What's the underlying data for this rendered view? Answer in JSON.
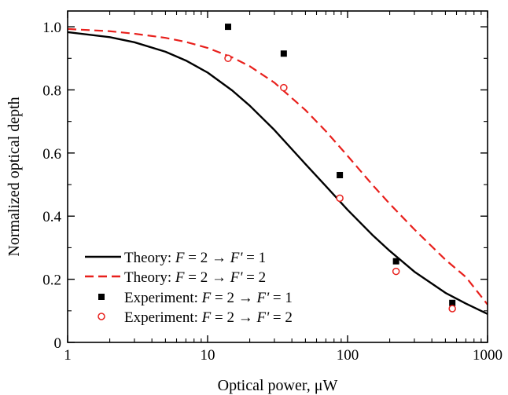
{
  "chart_data": {
    "type": "scatter",
    "xlabel": "Optical power, μW",
    "ylabel": "Normalized optical depth",
    "xscale": "log",
    "xlim": [
      1,
      1000
    ],
    "ylim": [
      0,
      1.05
    ],
    "x_ticks": [
      1,
      10,
      100,
      1000
    ],
    "x_tick_labels": [
      "1",
      "10",
      "100",
      "1000"
    ],
    "y_ticks": [
      0,
      0.2,
      0.4,
      0.6,
      0.8,
      1.0
    ],
    "y_tick_labels": [
      "0",
      "0.2",
      "0.4",
      "0.6",
      "0.8",
      "1.0"
    ],
    "grid": false,
    "legend_position": "bottom-left",
    "series": [
      {
        "name": "Theory: F = 2 → F' = 1",
        "name_parts": [
          "Theory: ",
          "F",
          " = 2 → ",
          "F'",
          " = 1"
        ],
        "kind": "line",
        "color": "#000000",
        "dash": "solid",
        "x": [
          1,
          2,
          3,
          5,
          7,
          10,
          15,
          20,
          30,
          50,
          70,
          100,
          150,
          200,
          300,
          500,
          700,
          1000
        ],
        "y": [
          0.983,
          0.967,
          0.951,
          0.921,
          0.893,
          0.855,
          0.798,
          0.75,
          0.673,
          0.565,
          0.495,
          0.42,
          0.341,
          0.29,
          0.224,
          0.157,
          0.123,
          0.09
        ]
      },
      {
        "name": "Theory: F = 2 → F' = 2",
        "name_parts": [
          "Theory: ",
          "F",
          " = 2 → ",
          "F'",
          " = 2"
        ],
        "kind": "line",
        "color": "#e8201c",
        "dash": "dashed",
        "x": [
          1,
          2,
          3,
          5,
          7,
          10,
          15,
          20,
          30,
          50,
          70,
          100,
          150,
          200,
          300,
          500,
          700,
          1000
        ],
        "y": [
          0.993,
          0.986,
          0.978,
          0.965,
          0.952,
          0.933,
          0.903,
          0.875,
          0.823,
          0.736,
          0.669,
          0.591,
          0.5,
          0.439,
          0.358,
          0.262,
          0.207,
          0.12
        ]
      },
      {
        "name": "Experiment: F = 2 → F' = 1",
        "name_parts": [
          "Experiment: ",
          "F",
          " = 2 → ",
          "F'",
          " = 1"
        ],
        "kind": "marker",
        "marker": "filled-square",
        "color": "#000000",
        "x": [
          14,
          35,
          88,
          222,
          560
        ],
        "y": [
          1.0,
          0.915,
          0.53,
          0.257,
          0.125
        ]
      },
      {
        "name": "Experiment: F = 2 → F' = 2",
        "name_parts": [
          "Experiment: ",
          "F",
          " = 2 → ",
          "F'",
          " = 2"
        ],
        "kind": "marker",
        "marker": "open-circle",
        "color": "#e8201c",
        "x": [
          14,
          35,
          88,
          222,
          560
        ],
        "y": [
          0.9,
          0.807,
          0.457,
          0.225,
          0.107
        ]
      }
    ]
  }
}
